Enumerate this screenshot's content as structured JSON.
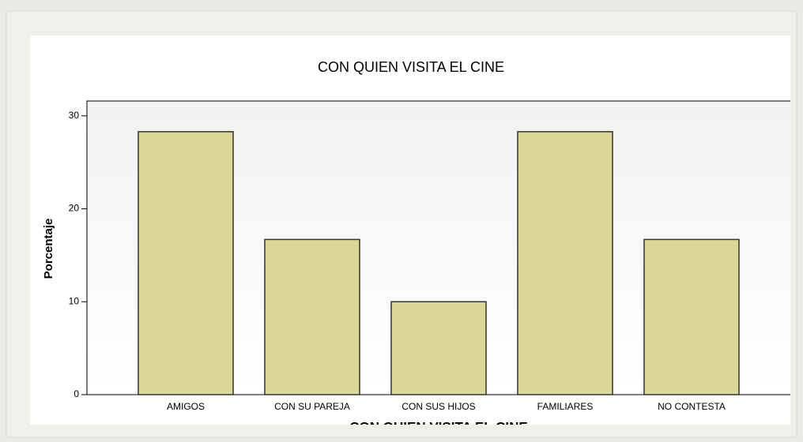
{
  "chart_data": {
    "type": "bar",
    "title": "CON QUIEN VISITA EL CINE",
    "x_label": "CON QUIEN VISITA EL CINE",
    "y_label": "Porcentaje",
    "categories": [
      "AMIGOS",
      "CON SU PAREJA",
      "CON SUS HIJOS",
      "FAMILIARES",
      "NO CONTESTA"
    ],
    "values": [
      28.3,
      16.7,
      10,
      28.3,
      16.7
    ],
    "color": "#ddd699",
    "ylim": [
      0,
      31.6
    ],
    "yticks": [
      0,
      10,
      20,
      30
    ],
    "grid": false
  }
}
